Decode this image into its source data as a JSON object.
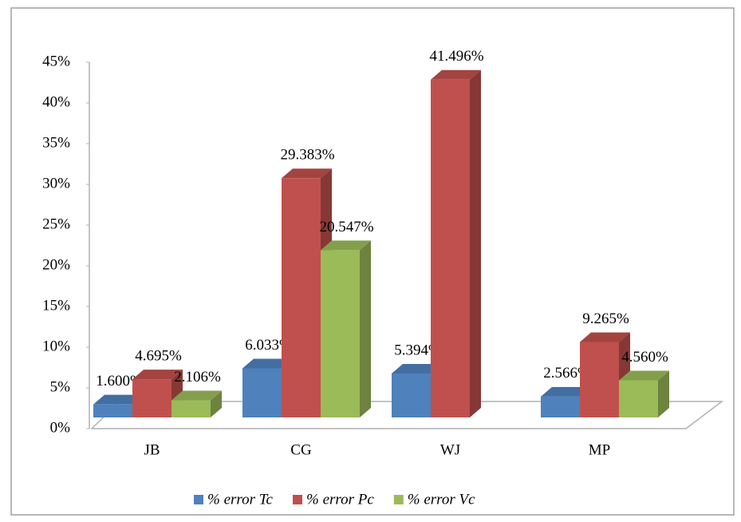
{
  "chart_data": {
    "type": "bar3d",
    "categories": [
      "JB",
      "CG",
      "WJ",
      "MP"
    ],
    "series": [
      {
        "name": "% error Tc",
        "color": "#4f81bd",
        "values": [
          1.6,
          6.033,
          5.394,
          2.566
        ],
        "value_labels": [
          "1.600%",
          "6.033%",
          "5.394%",
          "2.566%"
        ]
      },
      {
        "name": "% error Pc",
        "color": "#c0504d",
        "values": [
          4.695,
          29.383,
          41.496,
          9.265
        ],
        "value_labels": [
          "4.695%",
          "29.383%",
          "41.496%",
          "9.265%"
        ]
      },
      {
        "name": "% error Vc",
        "color": "#9bbb59",
        "values": [
          2.106,
          20.547,
          null,
          4.56
        ],
        "value_labels": [
          "2.106%",
          "20.547%",
          null,
          "4.560%"
        ]
      }
    ],
    "ylim": [
      0,
      45
    ],
    "yticks": [
      {
        "value": 0,
        "label": "0%"
      },
      {
        "value": 5,
        "label": "5%"
      },
      {
        "value": 10,
        "label": "10%"
      },
      {
        "value": 15,
        "label": "15%"
      },
      {
        "value": 20,
        "label": "20%"
      },
      {
        "value": 25,
        "label": "25%"
      },
      {
        "value": 30,
        "label": "30%"
      },
      {
        "value": 35,
        "label": "35%"
      },
      {
        "value": 40,
        "label": "40%"
      },
      {
        "value": 45,
        "label": "45%"
      }
    ],
    "legend": "bottom"
  }
}
